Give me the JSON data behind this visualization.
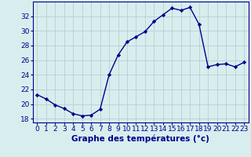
{
  "hours": [
    0,
    1,
    2,
    3,
    4,
    5,
    6,
    7,
    8,
    9,
    10,
    11,
    12,
    13,
    14,
    15,
    16,
    17,
    18,
    19,
    20,
    21,
    22,
    23
  ],
  "temperatures": [
    21.3,
    20.7,
    19.9,
    19.4,
    18.7,
    18.4,
    18.5,
    19.3,
    24.0,
    26.7,
    28.5,
    29.2,
    29.9,
    31.3,
    32.2,
    33.1,
    32.8,
    33.2,
    30.9,
    25.1,
    25.4,
    25.5,
    25.1,
    25.7
  ],
  "line_color": "#00008B",
  "marker": "D",
  "marker_size": 2.2,
  "bg_color": "#d8eeee",
  "grid_color": "#b8d0d0",
  "xlabel": "Graphe des températures (°c)",
  "ylim": [
    17.5,
    34.0
  ],
  "yticks": [
    18,
    20,
    22,
    24,
    26,
    28,
    30,
    32
  ],
  "xlabel_fontsize": 7.5,
  "tick_fontsize": 6.5,
  "linewidth": 1.0
}
